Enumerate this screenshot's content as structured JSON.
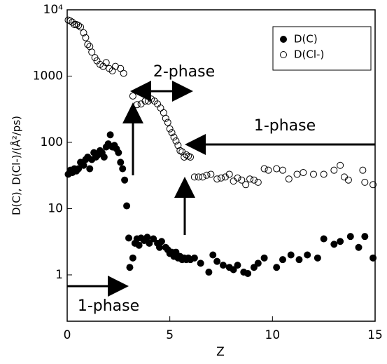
{
  "chart_data": {
    "type": "scatter",
    "x_label": "Z",
    "y_label": "D(C), D(Cl-)/(Å²/ps)",
    "log_y": true,
    "xlim": [
      0,
      15
    ],
    "ylim": [
      0.2,
      10000
    ],
    "xticks": [
      0,
      5,
      10,
      15
    ],
    "yticks": [
      1,
      10,
      100,
      1000,
      {
        "value": 10000,
        "label": "10⁴"
      }
    ],
    "legend": "upper right",
    "annotations": [
      "2-phase",
      "1-phase",
      "1-phase"
    ],
    "series": [
      {
        "name": "D(C)",
        "color": "#000000",
        "marker": "filled",
        "x": [
          0.05,
          0.15,
          0.25,
          0.35,
          0.45,
          0.55,
          0.65,
          0.8,
          0.9,
          1.0,
          1.1,
          1.2,
          1.3,
          1.4,
          1.5,
          1.6,
          1.7,
          1.8,
          1.9,
          2.0,
          2.1,
          2.2,
          2.3,
          2.4,
          2.5,
          2.6,
          2.7,
          2.8,
          2.9,
          3.0,
          3.05,
          3.2,
          3.3,
          3.4,
          3.5,
          3.6,
          3.75,
          3.9,
          4.0,
          4.2,
          4.4,
          4.5,
          4.6,
          4.8,
          4.9,
          5.0,
          5.1,
          5.2,
          5.3,
          5.4,
          5.5,
          5.6,
          5.7,
          5.8,
          5.9,
          6.0,
          6.2,
          6.5,
          6.9,
          7.1,
          7.3,
          7.6,
          7.9,
          8.1,
          8.3,
          8.6,
          8.8,
          9.1,
          9.3,
          9.6,
          10.2,
          10.5,
          10.9,
          11.3,
          11.7,
          12.2,
          12.5,
          13.0,
          13.3,
          13.8,
          14.2,
          14.5,
          14.9
        ],
        "values": [
          33,
          38,
          35,
          40,
          37,
          40,
          50,
          45,
          55,
          60,
          40,
          55,
          70,
          60,
          65,
          75,
          70,
          60,
          85,
          95,
          130,
          85,
          90,
          80,
          70,
          50,
          40,
          27,
          11,
          3.6,
          1.3,
          1.8,
          3.0,
          3.5,
          2.8,
          3.6,
          3.3,
          3.7,
          3.0,
          3.5,
          3.0,
          2.6,
          3.2,
          2.6,
          2.4,
          2.1,
          2.2,
          1.9,
          2.2,
          1.8,
          1.9,
          1.7,
          1.8,
          1.7,
          1.8,
          1.7,
          1.8,
          1.5,
          1.1,
          2.0,
          1.6,
          1.4,
          1.3,
          1.2,
          1.4,
          1.1,
          1.05,
          1.3,
          1.5,
          1.8,
          1.3,
          1.7,
          2.0,
          1.7,
          2.0,
          1.8,
          3.5,
          2.9,
          3.2,
          3.8,
          2.6,
          3.8,
          1.8
        ]
      },
      {
        "name": "D(Cl-)",
        "color": "#000000",
        "marker": "open",
        "x": [
          0.05,
          0.15,
          0.25,
          0.35,
          0.45,
          0.55,
          0.65,
          0.8,
          0.9,
          1.0,
          1.1,
          1.2,
          1.35,
          1.45,
          1.6,
          1.75,
          1.9,
          2.05,
          2.2,
          2.35,
          2.6,
          2.75,
          3.2,
          3.4,
          3.6,
          3.8,
          3.95,
          4.1,
          4.25,
          4.4,
          4.55,
          4.7,
          4.8,
          4.9,
          5.0,
          5.1,
          5.2,
          5.3,
          5.4,
          5.5,
          5.6,
          5.7,
          5.8,
          5.9,
          6.0,
          6.2,
          6.4,
          6.6,
          6.8,
          7.0,
          7.3,
          7.5,
          7.7,
          7.9,
          8.1,
          8.3,
          8.5,
          8.7,
          8.9,
          9.1,
          9.3,
          9.6,
          9.8,
          10.2,
          10.5,
          10.8,
          11.2,
          11.5,
          12.0,
          12.5,
          13.0,
          13.3,
          13.5,
          13.7,
          14.4,
          14.5,
          14.9
        ],
        "values": [
          7000,
          6800,
          6500,
          6000,
          6000,
          5800,
          5500,
          4500,
          3800,
          3000,
          2800,
          2300,
          1900,
          1700,
          1500,
          1400,
          1600,
          1300,
          1200,
          1400,
          1300,
          1100,
          500,
          370,
          380,
          420,
          420,
          450,
          420,
          380,
          330,
          280,
          230,
          200,
          160,
          140,
          120,
          105,
          90,
          75,
          72,
          60,
          65,
          62,
          60,
          30,
          30,
          30,
          32,
          33,
          28,
          29,
          30,
          33,
          26,
          29,
          27,
          23,
          28,
          27,
          25,
          40,
          38,
          40,
          38,
          28,
          33,
          35,
          33,
          33,
          38,
          45,
          30,
          27,
          38,
          25,
          23
        ]
      }
    ]
  }
}
